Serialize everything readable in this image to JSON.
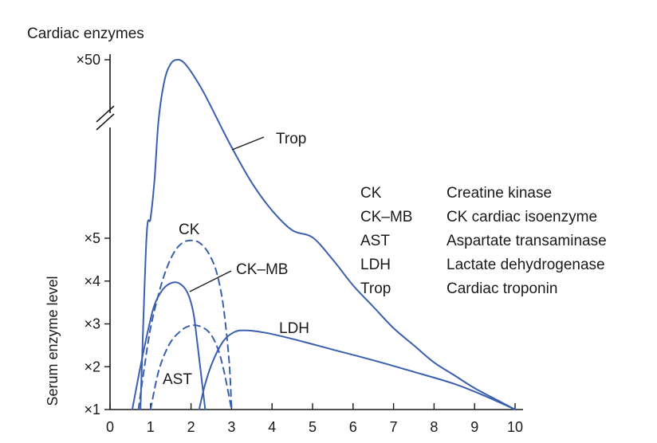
{
  "chart_data": {
    "type": "line",
    "title": "Cardiac enzymes",
    "ylabel": "Serum enzyme level",
    "xlabel": "",
    "xlim": [
      0,
      10
    ],
    "x_ticks": [
      "0",
      "1",
      "2",
      "3",
      "4",
      "5",
      "6",
      "7",
      "8",
      "9",
      "10"
    ],
    "y_ticks": [
      "×1",
      "×2",
      "×3",
      "×4",
      "×5",
      "×50"
    ],
    "y_break": true,
    "grid": false,
    "series": [
      {
        "name": "Trop",
        "style": "solid",
        "color": "#3a5fae",
        "points": [
          [
            0.75,
            1
          ],
          [
            0.9,
            5
          ],
          [
            1.0,
            10
          ],
          [
            1.1,
            20
          ],
          [
            1.2,
            35
          ],
          [
            1.35,
            45
          ],
          [
            1.5,
            49
          ],
          [
            1.65,
            50
          ],
          [
            1.8,
            49.5
          ],
          [
            2.0,
            47
          ],
          [
            2.3,
            42
          ],
          [
            2.6,
            36
          ],
          [
            3.0,
            28
          ],
          [
            3.5,
            19
          ],
          [
            4.0,
            12
          ],
          [
            4.5,
            7
          ],
          [
            5.0,
            5.2
          ],
          [
            5.5,
            4.5
          ],
          [
            6.0,
            3.9
          ],
          [
            6.5,
            3.4
          ],
          [
            7.0,
            2.9
          ],
          [
            7.5,
            2.5
          ],
          [
            8.0,
            2.1
          ],
          [
            8.5,
            1.8
          ],
          [
            9.0,
            1.5
          ],
          [
            9.5,
            1.25
          ],
          [
            10.0,
            1.0
          ]
        ]
      },
      {
        "name": "CK",
        "style": "dashed",
        "color": "#3a5fae",
        "points": [
          [
            0.7,
            1
          ],
          [
            0.85,
            2
          ],
          [
            1.0,
            2.9
          ],
          [
            1.2,
            3.7
          ],
          [
            1.4,
            4.3
          ],
          [
            1.6,
            4.7
          ],
          [
            1.8,
            4.9
          ],
          [
            2.0,
            4.95
          ],
          [
            2.2,
            4.9
          ],
          [
            2.4,
            4.7
          ],
          [
            2.6,
            4.3
          ],
          [
            2.75,
            3.7
          ],
          [
            2.85,
            3.0
          ],
          [
            2.95,
            2.0
          ],
          [
            3.0,
            1
          ]
        ]
      },
      {
        "name": "CK-MB",
        "style": "solid",
        "color": "#3a5fae",
        "points": [
          [
            0.55,
            1
          ],
          [
            0.75,
            2
          ],
          [
            0.95,
            2.9
          ],
          [
            1.1,
            3.45
          ],
          [
            1.3,
            3.8
          ],
          [
            1.5,
            3.95
          ],
          [
            1.7,
            3.95
          ],
          [
            1.9,
            3.75
          ],
          [
            2.05,
            3.3
          ],
          [
            2.15,
            2.6
          ],
          [
            2.25,
            1.8
          ],
          [
            2.35,
            1
          ]
        ]
      },
      {
        "name": "AST",
        "style": "dashed",
        "color": "#3a5fae",
        "points": [
          [
            1.0,
            1
          ],
          [
            1.2,
            1.9
          ],
          [
            1.45,
            2.5
          ],
          [
            1.7,
            2.8
          ],
          [
            1.95,
            2.95
          ],
          [
            2.2,
            2.95
          ],
          [
            2.45,
            2.8
          ],
          [
            2.65,
            2.45
          ],
          [
            2.8,
            1.95
          ],
          [
            2.92,
            1.4
          ],
          [
            3.0,
            1
          ]
        ]
      },
      {
        "name": "LDH",
        "style": "solid",
        "color": "#3a5fae",
        "points": [
          [
            2.2,
            1
          ],
          [
            2.35,
            1.6
          ],
          [
            2.55,
            2.15
          ],
          [
            2.8,
            2.6
          ],
          [
            3.05,
            2.8
          ],
          [
            3.3,
            2.85
          ],
          [
            3.8,
            2.8
          ],
          [
            4.5,
            2.65
          ],
          [
            5.5,
            2.4
          ],
          [
            6.5,
            2.15
          ],
          [
            7.5,
            1.88
          ],
          [
            8.5,
            1.6
          ],
          [
            9.3,
            1.3
          ],
          [
            10.0,
            1.0
          ]
        ]
      }
    ],
    "annotations": [
      {
        "text": "Trop",
        "target": "Trop"
      },
      {
        "text": "CK",
        "target": "CK"
      },
      {
        "text": "CK–MB",
        "target": "CK-MB"
      },
      {
        "text": "AST",
        "target": "AST"
      },
      {
        "text": "LDH",
        "target": "LDH"
      }
    ],
    "legend": {
      "placement": "right",
      "entries": [
        {
          "abbr": "CK",
          "desc": "Creatine kinase"
        },
        {
          "abbr": "CK–MB",
          "desc": "CK cardiac isoenzyme"
        },
        {
          "abbr": "AST",
          "desc": "Aspartate transaminase"
        },
        {
          "abbr": "LDH",
          "desc": "Lactate dehydrogenase"
        },
        {
          "abbr": "Trop",
          "desc": "Cardiac troponin"
        }
      ]
    }
  }
}
